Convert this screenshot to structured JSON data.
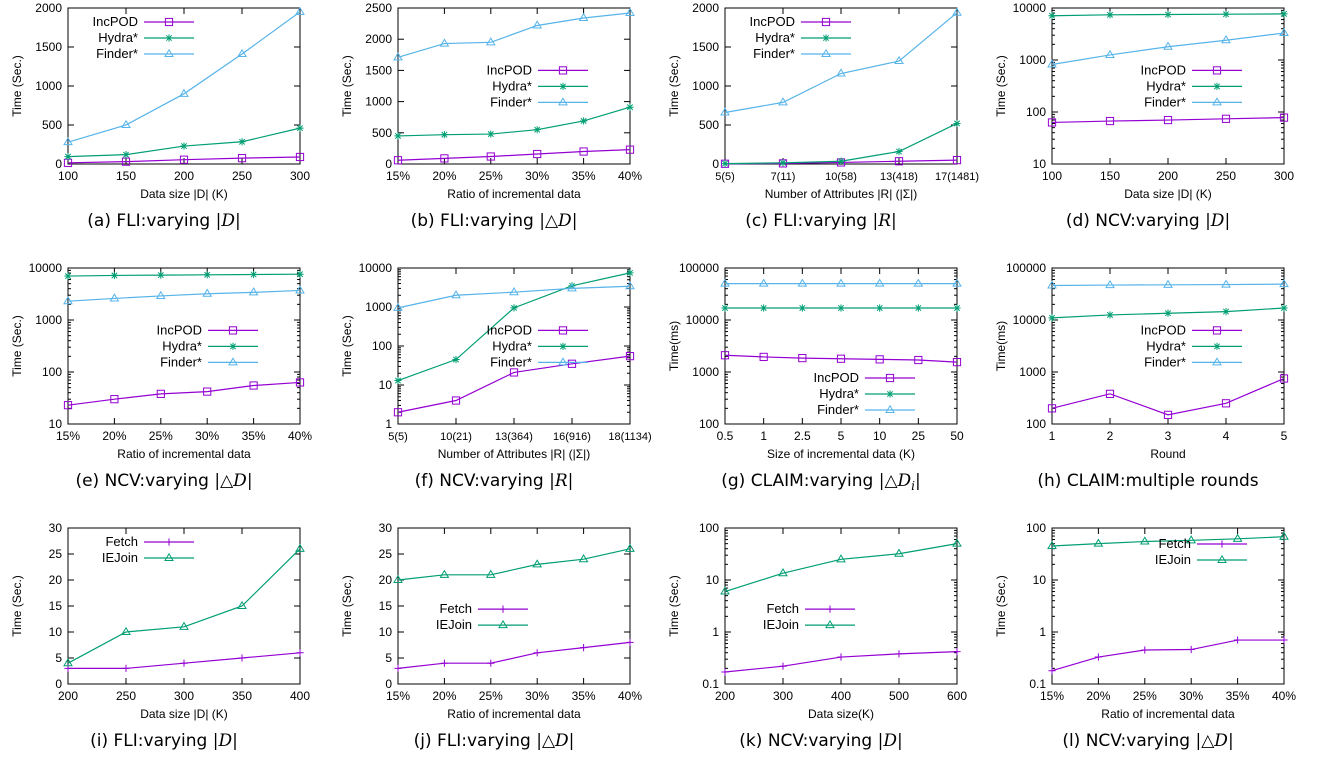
{
  "colors": {
    "IncPOD": "#9400d3",
    "Hydra*": "#009e73",
    "Finder*": "#56b4e9",
    "Fetch": "#9400d3",
    "IEJoin": "#009e73"
  },
  "chart_data": [
    {
      "type": "line",
      "caption": {
        "label": "(a)",
        "text": "FLI:varying ",
        "math": "D"
      },
      "xlabel": "Data size |D| (K)",
      "ylabel": "Time (Sec.)",
      "yscale": "linear",
      "ylim": [
        0,
        2000
      ],
      "yticks": [
        "0",
        "500",
        "1000",
        "1500",
        "2000"
      ],
      "categories": [
        "100",
        "150",
        "200",
        "250",
        "300"
      ],
      "legend": "top-left",
      "series": [
        {
          "name": "IncPOD",
          "values": [
            15,
            30,
            55,
            75,
            90
          ]
        },
        {
          "name": "Hydra*",
          "values": [
            95,
            120,
            230,
            285,
            460
          ]
        },
        {
          "name": "Finder*",
          "values": [
            280,
            500,
            900,
            1410,
            1950
          ]
        }
      ]
    },
    {
      "type": "line",
      "caption": {
        "label": "(b)",
        "text": "FLI:varying ",
        "math": "△D"
      },
      "xlabel": "Ratio of incremental data",
      "ylabel": "Time (Sec.)",
      "yscale": "linear",
      "ylim": [
        0,
        2500
      ],
      "yticks": [
        "0",
        "500",
        "1000",
        "1500",
        "2000",
        "2500"
      ],
      "categories": [
        "15%",
        "20%",
        "25%",
        "30%",
        "35%",
        "40%"
      ],
      "legend": "center-right",
      "series": [
        {
          "name": "IncPOD",
          "values": [
            60,
            90,
            120,
            160,
            200,
            230
          ]
        },
        {
          "name": "Hydra*",
          "values": [
            450,
            470,
            480,
            550,
            690,
            910
          ]
        },
        {
          "name": "Finder*",
          "values": [
            1710,
            1930,
            1950,
            2220,
            2340,
            2420
          ]
        }
      ]
    },
    {
      "type": "line",
      "caption": {
        "label": "(c)",
        "text": "FLI:varying ",
        "math": "R"
      },
      "xlabel": "Number of Attributes |R| (|Σ|)",
      "ylabel": "Time (Sec.)",
      "yscale": "linear",
      "ylim": [
        0,
        2000
      ],
      "yticks": [
        "0",
        "500",
        "1000",
        "1500",
        "2000"
      ],
      "categories": [
        "5(5)",
        "7(11)",
        "10(58)",
        "13(418)",
        "17(1481)"
      ],
      "legend": "top-left",
      "series": [
        {
          "name": "IncPOD",
          "values": [
            3,
            8,
            20,
            35,
            50
          ]
        },
        {
          "name": "Hydra*",
          "values": [
            5,
            15,
            35,
            160,
            520
          ]
        },
        {
          "name": "Finder*",
          "values": [
            660,
            790,
            1160,
            1320,
            1940
          ]
        }
      ]
    },
    {
      "type": "line",
      "caption": {
        "label": "(d)",
        "text": "NCV:varying ",
        "math": "D"
      },
      "xlabel": "Data size |D| (K)",
      "ylabel": "Time (Sec.)",
      "yscale": "log",
      "ylim": [
        10,
        10000
      ],
      "yticks": [
        "10",
        "100",
        "1000",
        "10000"
      ],
      "categories": [
        "100",
        "150",
        "200",
        "250",
        "300"
      ],
      "legend": "center-right",
      "series": [
        {
          "name": "IncPOD",
          "values": [
            63,
            67,
            70,
            74,
            78
          ]
        },
        {
          "name": "Hydra*",
          "values": [
            7100,
            7400,
            7500,
            7600,
            7700
          ]
        },
        {
          "name": "Finder*",
          "values": [
            820,
            1250,
            1800,
            2400,
            3300
          ]
        }
      ]
    },
    {
      "type": "line",
      "caption": {
        "label": "(e)",
        "text": "NCV:varying ",
        "math": "△D"
      },
      "xlabel": "Ratio of incremental data",
      "ylabel": "Time (Sec.)",
      "yscale": "log",
      "ylim": [
        10,
        10000
      ],
      "yticks": [
        "10",
        "100",
        "1000",
        "10000"
      ],
      "categories": [
        "15%",
        "20%",
        "25%",
        "30%",
        "35%",
        "40%"
      ],
      "legend": "center-right",
      "series": [
        {
          "name": "IncPOD",
          "values": [
            23,
            30,
            38,
            42,
            55,
            63
          ]
        },
        {
          "name": "Hydra*",
          "values": [
            7000,
            7200,
            7300,
            7400,
            7500,
            7600
          ]
        },
        {
          "name": "Finder*",
          "values": [
            2300,
            2600,
            2900,
            3200,
            3400,
            3700
          ]
        }
      ]
    },
    {
      "type": "line",
      "caption": {
        "label": "(f)",
        "text": "NCV:varying ",
        "math": "R"
      },
      "xlabel": "Number of Attributes |R| (|Σ|)",
      "ylabel": "Time (Sec.)",
      "yscale": "log",
      "ylim": [
        1,
        10000
      ],
      "yticks": [
        "1",
        "10",
        "100",
        "1000",
        "10000"
      ],
      "categories": [
        "5(5)",
        "10(21)",
        "13(364)",
        "16(916)",
        "18(1134)"
      ],
      "legend": "center-right",
      "series": [
        {
          "name": "IncPOD",
          "values": [
            2,
            4,
            21,
            35,
            55
          ]
        },
        {
          "name": "Hydra*",
          "values": [
            13,
            45,
            950,
            3500,
            7500
          ]
        },
        {
          "name": "Finder*",
          "values": [
            950,
            2000,
            2400,
            3000,
            3400
          ]
        }
      ]
    },
    {
      "type": "line",
      "caption": {
        "label": "(g)",
        "text": "CLAIM:varying ",
        "math": "△D",
        "sub": "i"
      },
      "xlabel": "Size of incremental data (K)",
      "ylabel": "Time(ms)",
      "yscale": "log",
      "ylim": [
        100,
        100000
      ],
      "yticks": [
        "100",
        "1000",
        "10000",
        "100000"
      ],
      "categories": [
        "0.5",
        "1",
        "2.5",
        "5",
        "10",
        "25",
        "50"
      ],
      "legend": "bottom-right",
      "series": [
        {
          "name": "IncPOD",
          "values": [
            2100,
            1950,
            1850,
            1800,
            1750,
            1700,
            1550
          ]
        },
        {
          "name": "Hydra*",
          "values": [
            17000,
            17000,
            17000,
            17000,
            17000,
            17000,
            17000
          ]
        },
        {
          "name": "Finder*",
          "values": [
            50000,
            50000,
            50000,
            50000,
            50000,
            50000,
            50000
          ]
        }
      ]
    },
    {
      "type": "line",
      "caption": {
        "label": "(h)",
        "text": "CLAIM:multiple rounds",
        "math": ""
      },
      "xlabel": "Round",
      "ylabel": "Time(ms)",
      "yscale": "log",
      "ylim": [
        100,
        100000
      ],
      "yticks": [
        "100",
        "1000",
        "10000",
        "100000"
      ],
      "categories": [
        "1",
        "2",
        "3",
        "4",
        "5"
      ],
      "legend": "center-right",
      "series": [
        {
          "name": "IncPOD",
          "values": [
            200,
            380,
            150,
            250,
            750
          ]
        },
        {
          "name": "Hydra*",
          "values": [
            11000,
            12500,
            13500,
            14500,
            17000
          ]
        },
        {
          "name": "Finder*",
          "values": [
            46000,
            47000,
            47500,
            48000,
            49000
          ]
        }
      ]
    },
    {
      "type": "line",
      "caption": {
        "label": "(i)",
        "text": "FLI:varying ",
        "math": "D"
      },
      "xlabel": "Data size |D| (K)",
      "ylabel": "Time (Sec.)",
      "yscale": "linear",
      "ylim": [
        0,
        30
      ],
      "yticks": [
        "0",
        "5",
        "10",
        "15",
        "20",
        "25",
        "30"
      ],
      "categories": [
        "200",
        "250",
        "300",
        "350",
        "400"
      ],
      "legend": "top-left",
      "series": [
        {
          "name": "Fetch",
          "values": [
            3,
            3,
            4,
            5,
            6
          ]
        },
        {
          "name": "IEJoin",
          "values": [
            4,
            10,
            11,
            15,
            26
          ]
        }
      ]
    },
    {
      "type": "line",
      "caption": {
        "label": "(j)",
        "text": "FLI:varying ",
        "math": "△D"
      },
      "xlabel": "Ratio of incremental data",
      "ylabel": "Time (Sec.)",
      "yscale": "linear",
      "ylim": [
        0,
        30
      ],
      "yticks": [
        "0",
        "5",
        "10",
        "15",
        "20",
        "25",
        "30"
      ],
      "categories": [
        "15%",
        "20%",
        "25%",
        "30%",
        "35%",
        "40%"
      ],
      "legend": "center-left",
      "series": [
        {
          "name": "Fetch",
          "values": [
            3,
            4,
            4,
            6,
            7,
            8
          ]
        },
        {
          "name": "IEJoin",
          "values": [
            20,
            21,
            21,
            23,
            24,
            26
          ]
        }
      ]
    },
    {
      "type": "line",
      "caption": {
        "label": "(k)",
        "text": "NCV:varying ",
        "math": "D"
      },
      "xlabel": "Data size(K)",
      "ylabel": "Time (Sec.)",
      "yscale": "log",
      "ylim": [
        0.1,
        100
      ],
      "yticks": [
        "0.1",
        "1",
        "10",
        "100"
      ],
      "categories": [
        "200",
        "300",
        "400",
        "500",
        "600"
      ],
      "legend": "center-left",
      "series": [
        {
          "name": "Fetch",
          "values": [
            0.17,
            0.22,
            0.33,
            0.38,
            0.42
          ]
        },
        {
          "name": "IEJoin",
          "values": [
            6,
            13.5,
            25,
            32,
            50
          ]
        }
      ]
    },
    {
      "type": "line",
      "caption": {
        "label": "(l)",
        "text": "NCV:varying ",
        "math": "△D"
      },
      "xlabel": "Ratio of incremental data",
      "ylabel": "Time (Sec.)",
      "yscale": "log",
      "ylim": [
        0.1,
        100
      ],
      "yticks": [
        "0.1",
        "1",
        "10",
        "100"
      ],
      "categories": [
        "15%",
        "20%",
        "25%",
        "30%",
        "35%",
        "40%"
      ],
      "legend": "top-right",
      "series": [
        {
          "name": "Fetch",
          "values": [
            0.18,
            0.33,
            0.45,
            0.46,
            0.7,
            0.7
          ]
        },
        {
          "name": "IEJoin",
          "values": [
            45,
            50,
            55,
            58,
            62,
            68
          ]
        }
      ]
    }
  ]
}
